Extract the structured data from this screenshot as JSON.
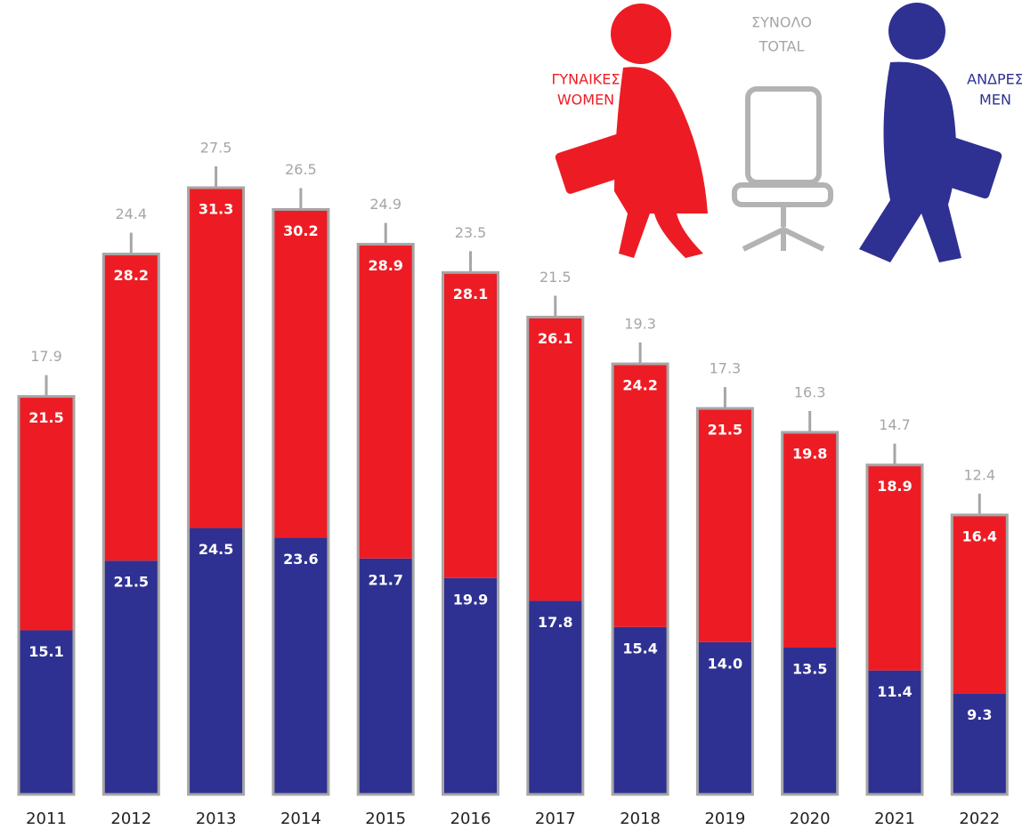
{
  "chart_data": {
    "type": "stacked-bar",
    "categories": [
      "2011",
      "2012",
      "2013",
      "2014",
      "2015",
      "2016",
      "2017",
      "2018",
      "2019",
      "2020",
      "2021",
      "2022"
    ],
    "series": [
      {
        "name": [
          "ΑΝΔΡΕΣ",
          "MEN"
        ],
        "color": "#2e3192",
        "values": [
          15.1,
          21.5,
          24.5,
          23.6,
          21.7,
          19.9,
          17.8,
          15.4,
          14.0,
          13.5,
          11.4,
          9.3
        ],
        "value_labels": [
          "15.1",
          "21.5",
          "24.5",
          "23.6",
          "21.7",
          "19.9",
          "17.8",
          "15.4",
          "14.0",
          "13.5",
          "11.4",
          "9.3"
        ]
      },
      {
        "name": [
          "ΓΥΝΑΙΚΕΣ",
          "WOMEN"
        ],
        "color": "#ed1c24",
        "values": [
          21.5,
          28.2,
          31.3,
          30.2,
          28.9,
          28.1,
          26.1,
          24.2,
          21.5,
          19.8,
          18.9,
          16.4
        ]
      }
    ],
    "total": {
      "name": [
        "ΣΥΝΟΛΟ",
        "TOTAL"
      ],
      "color": "#a6a6a6",
      "values": [
        17.9,
        24.4,
        27.5,
        26.5,
        24.9,
        23.5,
        21.5,
        19.3,
        17.3,
        16.3,
        14.7,
        12.4
      ]
    },
    "ylim": [
      0,
      72
    ]
  }
}
